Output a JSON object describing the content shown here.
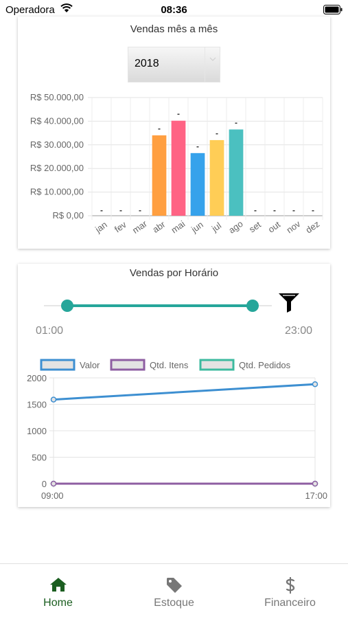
{
  "status_bar": {
    "carrier": "Operadora",
    "time": "08:36"
  },
  "sales_monthly": {
    "title": "Vendas mês a mês",
    "year_selected": "2018"
  },
  "sales_hourly": {
    "title": "Vendas por Horário",
    "range_start": "01:00",
    "range_end": "23:00",
    "range_start_fraction": 0.0,
    "range_end_fraction": 1.0
  },
  "tabs": [
    {
      "label": "Home",
      "icon": "home-icon",
      "active": true
    },
    {
      "label": "Estoque",
      "icon": "tag-icon",
      "active": false
    },
    {
      "label": "Financeiro",
      "icon": "dollar-icon",
      "active": false
    }
  ],
  "colors": {
    "active_tab": "#1b5e20",
    "inactive_tab": "#777777",
    "slider": "#26a69a"
  },
  "chart_data": [
    {
      "type": "bar",
      "categories": [
        "jan",
        "fev",
        "mar",
        "abr",
        "mai",
        "jun",
        "jul",
        "ago",
        "set",
        "out",
        "nov",
        "dez"
      ],
      "values": [
        0,
        0,
        0,
        34000,
        40200,
        26500,
        32000,
        36500,
        0,
        0,
        0,
        0
      ],
      "colors": [
        "#ff9f40",
        "#ff9f40",
        "#ff9f40",
        "#ff9f40",
        "#ff6384",
        "#36a2eb",
        "#ffcd56",
        "#4bc0c0",
        "#4bc0c0",
        "#4bc0c0",
        "#4bc0c0",
        "#4bc0c0"
      ],
      "value_labels": [
        "-",
        "-",
        "-",
        "-",
        "-",
        "-",
        "-",
        "-",
        "-",
        "-",
        "-",
        "-"
      ],
      "ylim": [
        0,
        50000
      ],
      "yticks": [
        0,
        10000,
        20000,
        30000,
        40000,
        50000
      ],
      "ytick_labels": [
        "R$ 0,00",
        "R$ 10.000,00",
        "R$ 20.000,00",
        "R$ 30.000,00",
        "R$ 40.000,00",
        "R$ 50.000,00"
      ],
      "grid": true
    },
    {
      "type": "line",
      "x": [
        "09:00",
        "17:00"
      ],
      "series": [
        {
          "name": "Valor",
          "values": [
            1590,
            1880
          ],
          "color": "#3d8fd1"
        },
        {
          "name": "Qtd. Itens",
          "values": [
            0,
            0
          ],
          "color": "#8e5ea2"
        },
        {
          "name": "Qtd. Pedidos",
          "values": [
            0,
            0
          ],
          "color": "#3cba9f"
        }
      ],
      "ylim": [
        0,
        2000
      ],
      "yticks": [
        0,
        500,
        1000,
        1500,
        2000
      ],
      "legend": "top",
      "grid": true
    }
  ]
}
